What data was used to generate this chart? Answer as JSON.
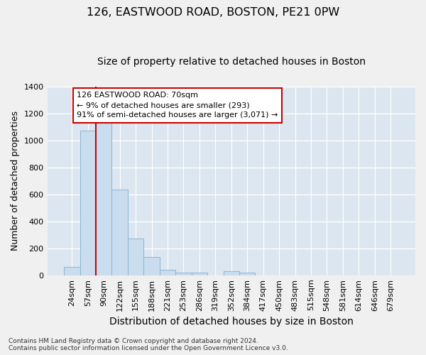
{
  "title_line1": "126, EASTWOOD ROAD, BOSTON, PE21 0PW",
  "title_line2": "Size of property relative to detached houses in Boston",
  "xlabel": "Distribution of detached houses by size in Boston",
  "ylabel": "Number of detached properties",
  "categories": [
    "24sqm",
    "57sqm",
    "90sqm",
    "122sqm",
    "155sqm",
    "188sqm",
    "221sqm",
    "253sqm",
    "286sqm",
    "319sqm",
    "352sqm",
    "384sqm",
    "417sqm",
    "450sqm",
    "483sqm",
    "515sqm",
    "548sqm",
    "581sqm",
    "614sqm",
    "646sqm",
    "679sqm"
  ],
  "values": [
    60,
    1070,
    1155,
    635,
    275,
    135,
    40,
    20,
    20,
    0,
    30,
    20,
    0,
    0,
    0,
    0,
    0,
    0,
    0,
    0,
    0
  ],
  "bar_color": "#c9ddef",
  "bar_edge_color": "#8ab4d4",
  "plot_bg_color": "#dce6f0",
  "fig_bg_color": "#f0f0f0",
  "grid_color": "#ffffff",
  "annotation_text": "126 EASTWOOD ROAD: 70sqm\n← 9% of detached houses are smaller (293)\n91% of semi-detached houses are larger (3,071) →",
  "annotation_box_facecolor": "#ffffff",
  "annotation_box_edgecolor": "#cc0000",
  "redline_x": 1.5,
  "ylim": [
    0,
    1400
  ],
  "yticks": [
    0,
    200,
    400,
    600,
    800,
    1000,
    1200,
    1400
  ],
  "footnote": "Contains HM Land Registry data © Crown copyright and database right 2024.\nContains public sector information licensed under the Open Government Licence v3.0.",
  "title_fontsize": 11.5,
  "subtitle_fontsize": 10,
  "xlabel_fontsize": 10,
  "ylabel_fontsize": 9,
  "tick_fontsize": 8,
  "annot_fontsize": 8,
  "footnote_fontsize": 6.5
}
